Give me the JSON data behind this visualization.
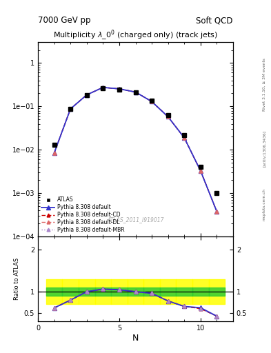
{
  "title_left": "7000 GeV pp",
  "title_right": "Soft QCD",
  "plot_title": "Multiplicity $\\lambda\\_0^0$ (charged only) (track jets)",
  "watermark": "ATLAS_2011_I919017",
  "rivet_label": "Rivet 3.1.10, ≥ 3M events",
  "arxiv_label": "[arXiv:1306.3436]",
  "mcplots_label": "mcplots.cern.ch",
  "atlas_x": [
    1,
    2,
    3,
    4,
    5,
    6,
    7,
    8,
    9,
    10,
    11
  ],
  "atlas_y": [
    0.013,
    0.088,
    0.185,
    0.26,
    0.245,
    0.215,
    0.135,
    0.063,
    0.022,
    0.004,
    0.001
  ],
  "pythia_x": [
    1,
    2,
    3,
    4,
    5,
    6,
    7,
    8,
    9,
    10,
    11
  ],
  "pythia_y": [
    0.0085,
    0.088,
    0.185,
    0.275,
    0.255,
    0.215,
    0.13,
    0.058,
    0.019,
    0.0033,
    0.00038
  ],
  "pythia_cd_y": [
    0.0085,
    0.088,
    0.185,
    0.275,
    0.255,
    0.215,
    0.13,
    0.058,
    0.019,
    0.0033,
    0.00038
  ],
  "pythia_dl_y": [
    0.0085,
    0.088,
    0.185,
    0.275,
    0.255,
    0.215,
    0.13,
    0.058,
    0.019,
    0.0033,
    0.00038
  ],
  "pythia_mbr_y": [
    0.0085,
    0.088,
    0.185,
    0.275,
    0.255,
    0.215,
    0.13,
    0.058,
    0.019,
    0.0033,
    0.00038
  ],
  "ratio_pythia_y": [
    0.615,
    0.8,
    1.0,
    1.06,
    1.045,
    1.0,
    0.96,
    0.78,
    0.65,
    0.62,
    0.42
  ],
  "ratio_cd_y": [
    0.615,
    0.8,
    1.0,
    1.06,
    1.045,
    1.0,
    0.96,
    0.78,
    0.65,
    0.6,
    0.42
  ],
  "ratio_dl_y": [
    0.615,
    0.8,
    1.0,
    1.06,
    1.045,
    1.0,
    0.96,
    0.78,
    0.65,
    0.6,
    0.42
  ],
  "ratio_mbr_y": [
    0.615,
    0.8,
    1.0,
    1.06,
    1.045,
    1.0,
    0.96,
    0.78,
    0.65,
    0.6,
    0.42
  ],
  "band_edges": [
    0.5,
    1.5,
    2.5,
    3.5,
    4.5,
    5.5,
    6.5,
    7.5,
    8.5,
    9.5,
    10.5,
    11.5
  ],
  "band_green_lo": 0.9,
  "band_green_hi": 1.1,
  "band_yellow_lo": 0.7,
  "band_yellow_hi": 1.3,
  "color_atlas": "#000000",
  "color_pythia": "#3333cc",
  "color_cd": "#cc0000",
  "color_dl": "#dd6666",
  "color_mbr": "#aa88cc",
  "xlim": [
    0,
    12
  ],
  "ylim_main": [
    0.0001,
    3.0
  ],
  "ylim_ratio": [
    0.3,
    2.3
  ],
  "xlabel": "N",
  "ylabel_ratio": "Ratio to ATLAS",
  "legend_atlas": "ATLAS",
  "legend_pythia": "Pythia 8.308 default",
  "legend_cd": "Pythia 8.308 default-CD",
  "legend_dl": "Pythia 8.308 default-DL",
  "legend_mbr": "Pythia 8.308 default-MBR"
}
